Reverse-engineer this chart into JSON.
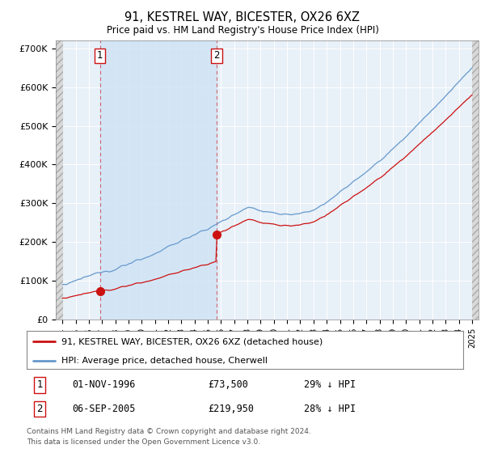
{
  "title": "91, KESTREL WAY, BICESTER, OX26 6XZ",
  "subtitle": "Price paid vs. HM Land Registry's House Price Index (HPI)",
  "hpi_color": "#6699cc",
  "price_color": "#cc1111",
  "annotation_color": "#cc1111",
  "bg_color": "#e8f0f8",
  "shade_color": "#d0e4f5",
  "ylim": [
    0,
    720000
  ],
  "yticks": [
    0,
    100000,
    200000,
    300000,
    400000,
    500000,
    600000,
    700000
  ],
  "sale1_price": 73500,
  "sale2_price": 219950,
  "sale1_year": 1996.833,
  "sale2_year": 2005.667,
  "legend_line1": "91, KESTREL WAY, BICESTER, OX26 6XZ (detached house)",
  "legend_line2": "HPI: Average price, detached house, Cherwell",
  "footnote1": "Contains HM Land Registry data © Crown copyright and database right 2024.",
  "footnote2": "This data is licensed under the Open Government Licence v3.0.",
  "xstart_year": 1994,
  "xend_year": 2025
}
